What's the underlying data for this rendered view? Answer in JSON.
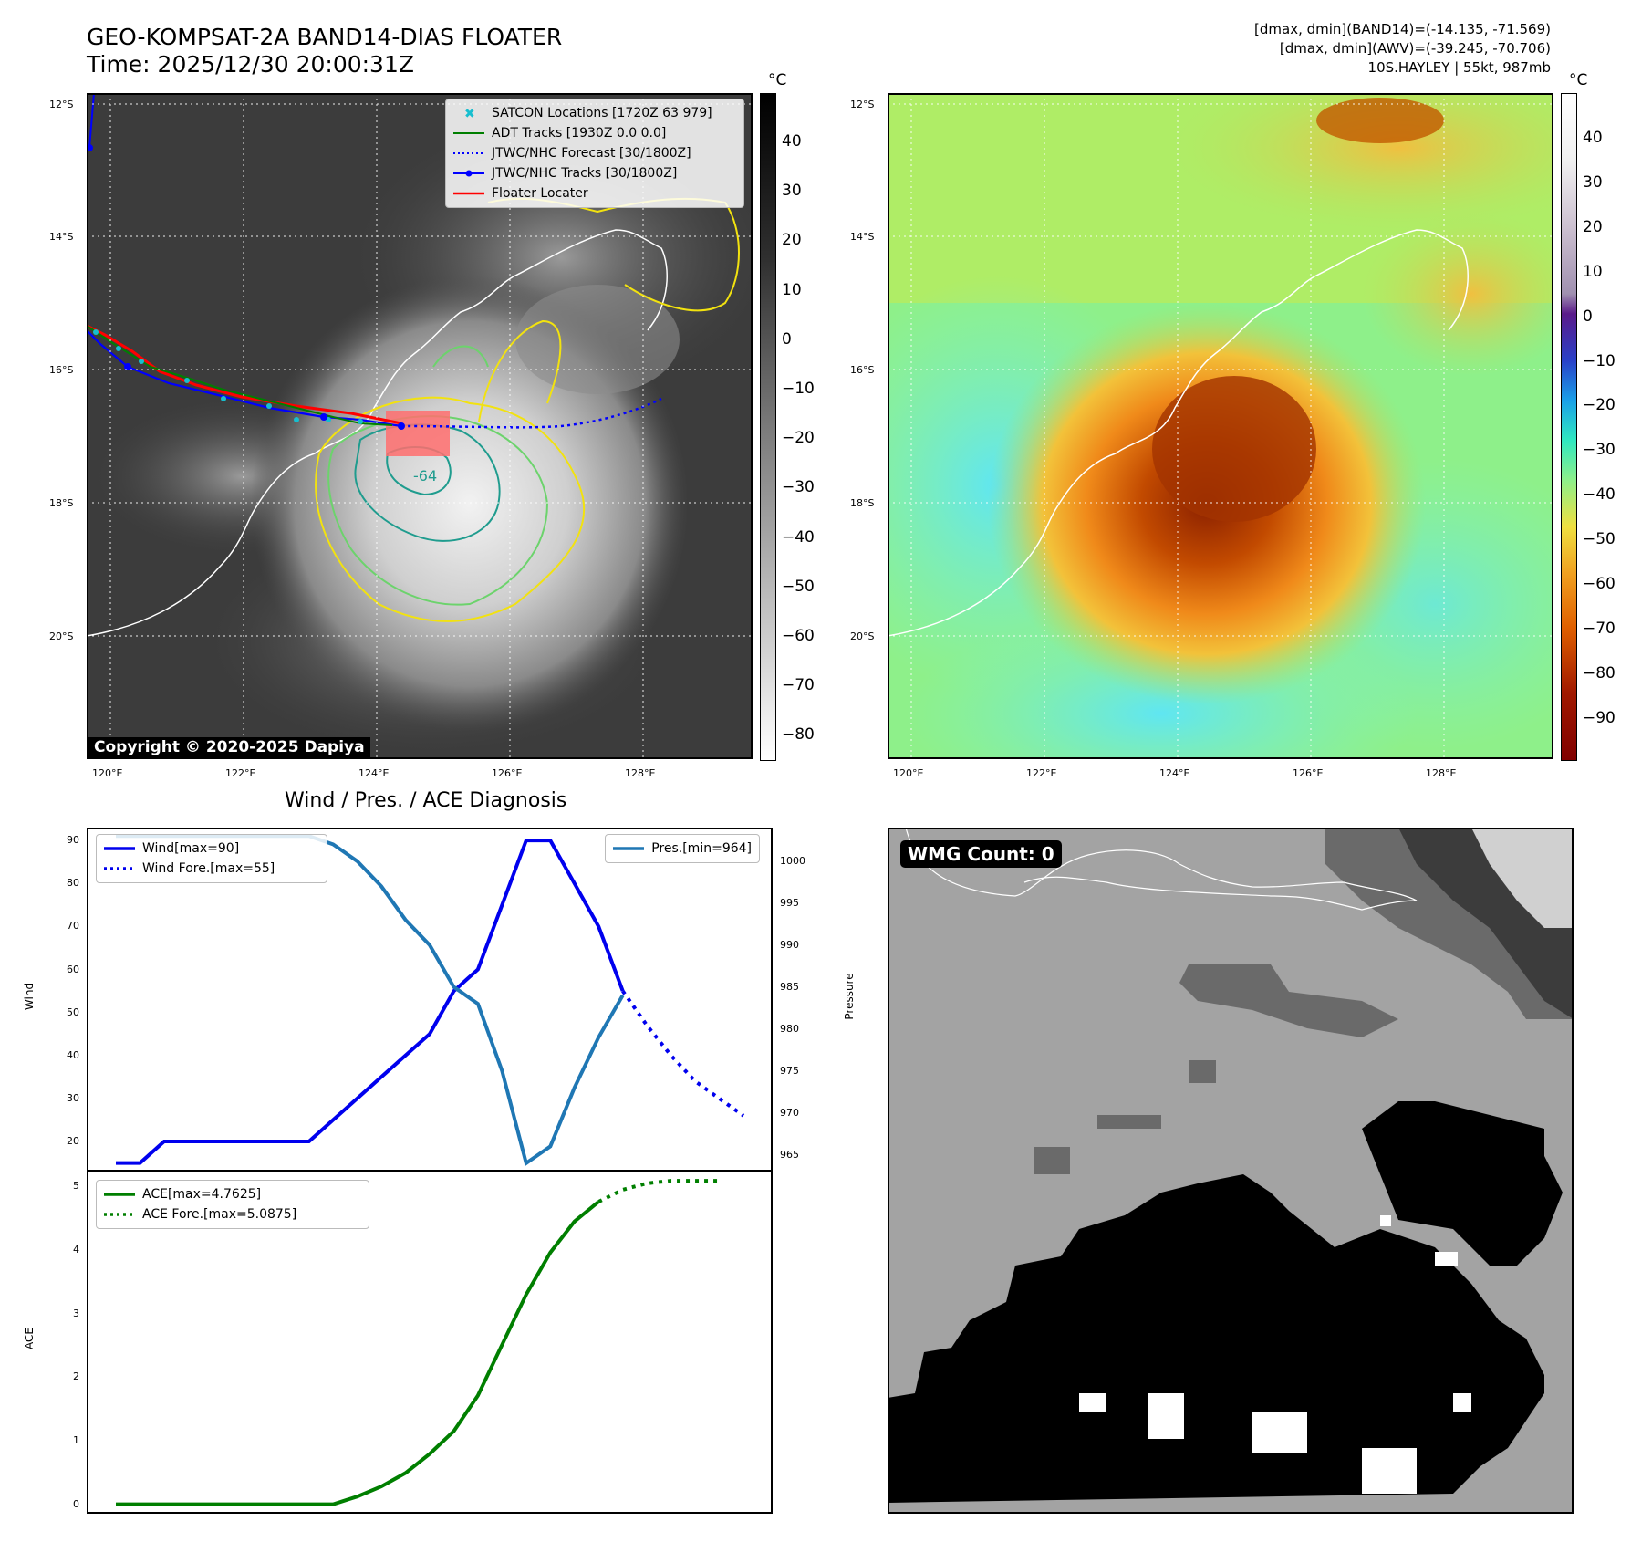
{
  "header": {
    "title_line1": "GEO-KOMPSAT-2A BAND14-DIAS FLOATER",
    "title_line2": "Time: 2025/12/30 20:00:31Z",
    "info_line1": "[dmax, dmin](BAND14)=(-14.135, -71.569)",
    "info_line2": "[dmax, dmin](AWV)=(-39.245, -70.706)",
    "info_line3": "10S.HAYLEY | 55kt, 987mb"
  },
  "map_axes": {
    "lat_ticks": [
      "12°S",
      "14°S",
      "16°S",
      "18°S",
      "20°S"
    ],
    "lon_ticks": [
      "120°E",
      "122°E",
      "124°E",
      "126°E",
      "128°E"
    ]
  },
  "colorbar_ir": {
    "unit": "°C",
    "ticks": [
      "40",
      "30",
      "20",
      "10",
      "0",
      "−10",
      "−20",
      "−30",
      "−40",
      "−50",
      "−60",
      "−70",
      "−80"
    ]
  },
  "colorbar_awv": {
    "unit": "°C",
    "ticks": [
      "40",
      "30",
      "20",
      "10",
      "0",
      "−10",
      "−20",
      "−30",
      "−40",
      "−50",
      "−60",
      "−70",
      "−80",
      "−90"
    ]
  },
  "map_legend": {
    "items": [
      {
        "label": "SATCON Locations [1720Z 63 979]"
      },
      {
        "label": "ADT Tracks [1930Z 0.0 0.0]"
      },
      {
        "label": "JTWC/NHC Forecast [30/1800Z]"
      },
      {
        "label": "JTWC/NHC Tracks [30/1800Z]"
      },
      {
        "label": "Floater Locater"
      }
    ]
  },
  "contour_label": "-64",
  "copyright": "Copyright © 2020-2025 Dapiya",
  "wmg_label": "WMG Count: 0",
  "colors": {
    "wind": "#0000ee",
    "pressure": "#1f77b4",
    "ace": "#007f00",
    "track": "#0000ff",
    "floater": "#ff0000",
    "satcon": "#17becf"
  },
  "chart_data": [
    {
      "type": "line",
      "title": "Wind / Pres. / ACE Diagnosis",
      "ylabel": "Wind",
      "ylabel_right": "Pressure",
      "ylim": [
        13,
        93
      ],
      "ylim_right": [
        963,
        1004
      ],
      "yticks": [
        "90",
        "80",
        "70",
        "60",
        "50",
        "40",
        "30",
        "20"
      ],
      "yticks_right": [
        "1000",
        "995",
        "990",
        "985",
        "980",
        "975",
        "970",
        "965"
      ],
      "series": [
        {
          "name": "Wind[max=90]",
          "style": "solid",
          "values": [
            15,
            15,
            20,
            20,
            20,
            20,
            20,
            20,
            20,
            25,
            30,
            35,
            40,
            45,
            55,
            60,
            75,
            90,
            90,
            80,
            70,
            55
          ]
        },
        {
          "name": "Wind Fore.[max=55]",
          "style": "dotted",
          "offset": 21,
          "values": [
            55,
            47,
            40,
            34,
            30,
            26
          ]
        },
        {
          "name": "Pres.[min=964]",
          "style": "solid",
          "axis": "right",
          "values": [
            1003,
            1003,
            1003,
            1003,
            1003,
            1003,
            1003,
            1003,
            1003,
            1002,
            1000,
            997,
            993,
            990,
            985,
            983,
            975,
            964,
            966,
            973,
            979,
            984
          ]
        }
      ],
      "legend": [
        "Wind[max=90]",
        "Wind Fore.[max=55]",
        "Pres.[min=964]"
      ]
    },
    {
      "type": "line",
      "ylabel": "ACE",
      "ylim": [
        -0.15,
        5.25
      ],
      "yticks": [
        "5",
        "4",
        "3",
        "2",
        "1",
        "0"
      ],
      "series": [
        {
          "name": "ACE[max=4.7625]",
          "style": "solid",
          "values": [
            0,
            0,
            0,
            0,
            0,
            0,
            0,
            0,
            0,
            0,
            0.12,
            0.28,
            0.49,
            0.79,
            1.15,
            1.71,
            2.51,
            3.3,
            3.96,
            4.45,
            4.76
          ]
        },
        {
          "name": "ACE Fore.[max=5.0875]",
          "style": "dotted",
          "offset": 20,
          "values": [
            4.76,
            4.95,
            5.05,
            5.09,
            5.09,
            5.09
          ]
        }
      ],
      "legend": [
        "ACE[max=4.7625]",
        "ACE Fore.[max=5.0875]"
      ]
    }
  ]
}
